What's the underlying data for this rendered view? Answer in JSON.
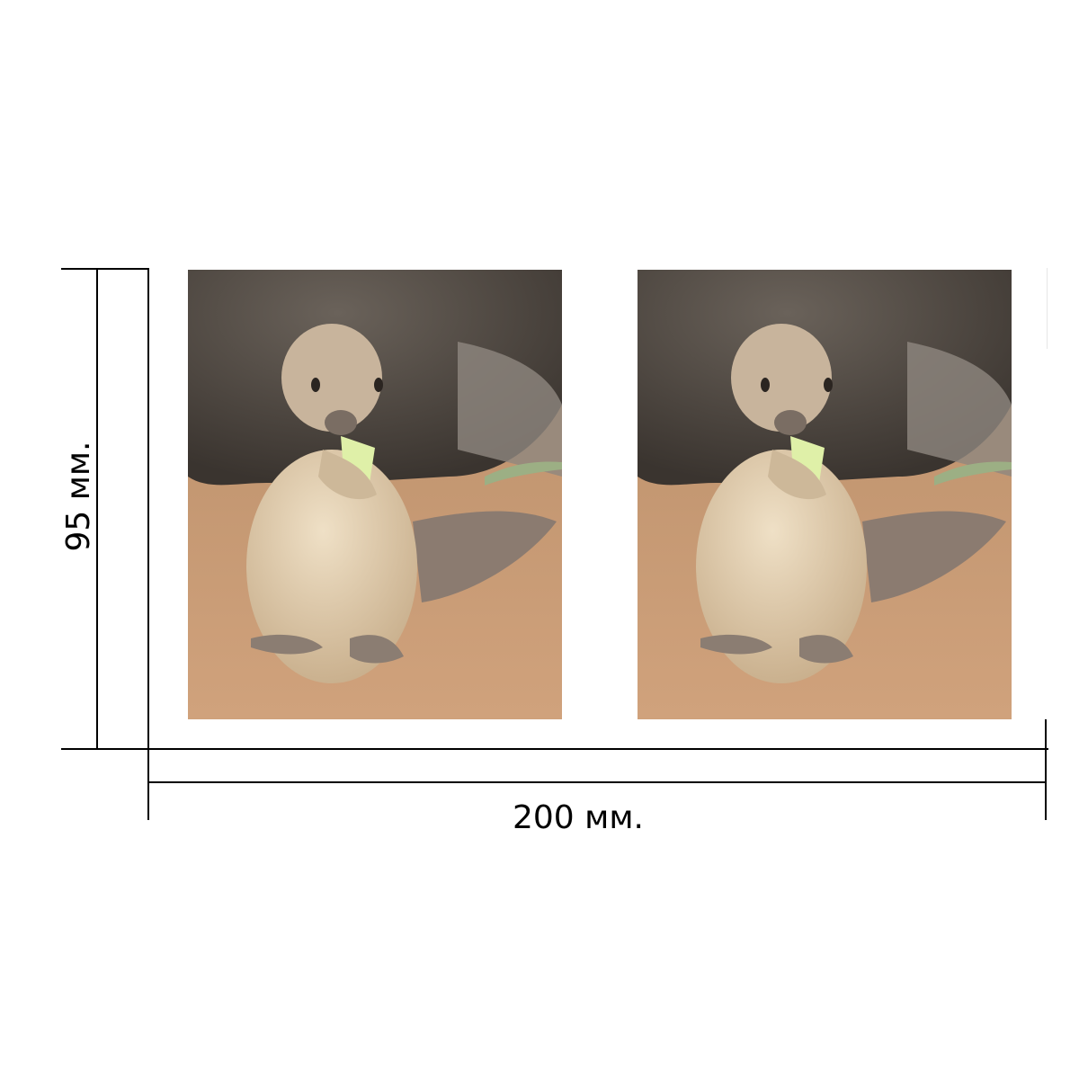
{
  "dimensions": {
    "height_label": "95 мм.",
    "width_label": "200 мм."
  },
  "photos": [
    {
      "subject": "ground-squirrel-eating"
    },
    {
      "subject": "ground-squirrel-eating"
    }
  ],
  "colors": {
    "line": "#000000",
    "background": "#ffffff",
    "sand": "#c79b72",
    "rock": "#4e4741",
    "fur": "#d9c3a4"
  }
}
